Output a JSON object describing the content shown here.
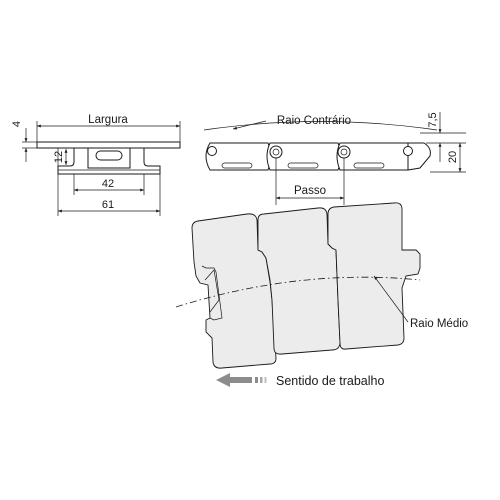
{
  "labels": {
    "largura": "Largura",
    "dim_4": "4",
    "dim_12": "12",
    "dim_42": "42",
    "dim_61": "61",
    "raio_contrario": "Raio Contrário",
    "dim_7_5": "7,5",
    "dim_20": "20",
    "passo": "Passo",
    "raio_medio": "Raio Médio",
    "sentido": "Sentido de trabalho"
  },
  "colors": {
    "line": "#1a1a1a",
    "part_fill": "#e4e4e4",
    "arrow_gray": "#8c8c8c"
  }
}
